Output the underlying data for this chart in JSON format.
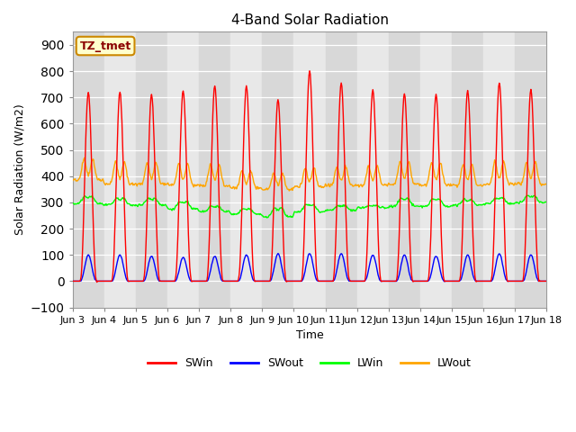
{
  "title": "4-Band Solar Radiation",
  "xlabel": "Time",
  "ylabel": "Solar Radiation (W/m2)",
  "ylim": [
    -100,
    950
  ],
  "yticks": [
    -100,
    0,
    100,
    200,
    300,
    400,
    500,
    600,
    700,
    800,
    900
  ],
  "xtick_labels": [
    "Jun 3",
    "Jun 4",
    "Jun 5",
    "Jun 6",
    "Jun 7",
    "Jun 8",
    "Jun 9",
    "Jun 10",
    "Jun 11",
    "Jun 12",
    "Jun 13",
    "Jun 14",
    "Jun 15",
    "Jun 16",
    "Jun 17",
    "Jun 18"
  ],
  "legend_labels": [
    "SWin",
    "SWout",
    "LWin",
    "LWout"
  ],
  "SWin_color": "#ff0000",
  "SWout_color": "#0000ff",
  "LWin_color": "#00ff00",
  "LWout_color": "#ffa500",
  "annotation_text": "TZ_tmet",
  "annotation_bg": "#ffffcc",
  "annotation_border": "#cc8800",
  "fig_bg": "#ffffff",
  "plot_bg": "#e8e8e8",
  "n_days": 15,
  "dt_hours": 0.5,
  "SWin_peaks": [
    720,
    720,
    710,
    725,
    745,
    745,
    690,
    800,
    755,
    730,
    715,
    710,
    725,
    755,
    730
  ],
  "SWout_peaks": [
    100,
    100,
    95,
    90,
    95,
    100,
    105,
    105,
    105,
    100,
    100,
    95,
    100,
    105,
    100
  ],
  "LWout_night": [
    385,
    370,
    370,
    365,
    365,
    355,
    350,
    360,
    365,
    365,
    370,
    365,
    365,
    370,
    370
  ],
  "LWout_peak1": [
    550,
    545,
    540,
    535,
    530,
    490,
    475,
    505,
    510,
    515,
    545,
    540,
    530,
    545,
    545
  ],
  "LWout_peak2": [
    530,
    530,
    525,
    520,
    515,
    480,
    465,
    490,
    495,
    500,
    530,
    525,
    515,
    530,
    530
  ],
  "LWin_night": [
    295,
    290,
    290,
    275,
    265,
    255,
    245,
    265,
    270,
    280,
    285,
    285,
    290,
    295,
    300
  ],
  "LWin_peak1": [
    350,
    340,
    340,
    330,
    305,
    295,
    310,
    320,
    305,
    295,
    345,
    340,
    330,
    340,
    350
  ],
  "LWin_peak2": [
    335,
    325,
    325,
    315,
    290,
    280,
    295,
    305,
    290,
    280,
    330,
    325,
    315,
    325,
    335
  ]
}
